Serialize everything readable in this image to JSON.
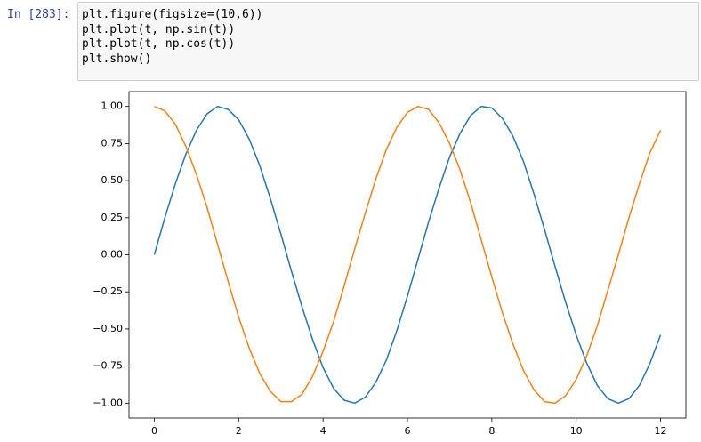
{
  "prompt": "In [283]:",
  "code": [
    "plt.figure(figsize=(10,6))",
    "plt.plot(t, np.sin(t))",
    "plt.plot(t, np.cos(t))",
    "plt.show()"
  ],
  "chart_data": {
    "type": "line",
    "x": [
      0,
      0.25,
      0.5,
      0.75,
      1,
      1.25,
      1.5,
      1.75,
      2,
      2.25,
      2.5,
      2.75,
      3,
      3.25,
      3.5,
      3.75,
      4,
      4.25,
      4.5,
      4.75,
      5,
      5.25,
      5.5,
      5.75,
      6,
      6.25,
      6.5,
      6.75,
      7,
      7.25,
      7.5,
      7.75,
      8,
      8.25,
      8.5,
      8.75,
      9,
      9.25,
      9.5,
      9.75,
      10,
      10.25,
      10.5,
      10.75,
      11,
      11.25,
      11.5,
      11.75,
      12
    ],
    "series": [
      {
        "color": "#1f77b4",
        "values": [
          0,
          0.25,
          0.48,
          0.68,
          0.84,
          0.95,
          1.0,
          0.98,
          0.91,
          0.78,
          0.6,
          0.38,
          0.14,
          -0.11,
          -0.35,
          -0.57,
          -0.76,
          -0.9,
          -0.98,
          -1.0,
          -0.96,
          -0.86,
          -0.71,
          -0.51,
          -0.28,
          -0.03,
          0.22,
          0.45,
          0.66,
          0.82,
          0.94,
          1.0,
          0.99,
          0.92,
          0.8,
          0.63,
          0.41,
          0.17,
          -0.08,
          -0.32,
          -0.54,
          -0.73,
          -0.88,
          -0.97,
          -1.0,
          -0.97,
          -0.88,
          -0.73,
          -0.54
        ]
      },
      {
        "color": "#ff7f0e",
        "values": [
          1,
          0.97,
          0.88,
          0.73,
          0.54,
          0.32,
          0.07,
          -0.18,
          -0.42,
          -0.63,
          -0.8,
          -0.92,
          -0.99,
          -0.99,
          -0.94,
          -0.82,
          -0.65,
          -0.45,
          -0.21,
          0.04,
          0.28,
          0.51,
          0.71,
          0.86,
          0.96,
          1.0,
          0.98,
          0.89,
          0.75,
          0.57,
          0.35,
          0.1,
          -0.15,
          -0.39,
          -0.6,
          -0.78,
          -0.91,
          -0.99,
          -1.0,
          -0.95,
          -0.84,
          -0.68,
          -0.48,
          -0.24,
          0.0,
          0.25,
          0.48,
          0.69,
          0.84
        ]
      }
    ],
    "xlim": [
      -0.6,
      12.6
    ],
    "ylim": [
      -1.1,
      1.1
    ],
    "xticks": [
      0,
      2,
      4,
      6,
      8,
      10,
      12
    ],
    "yticks": [
      {
        "value": -1,
        "label": "−1.00"
      },
      {
        "value": -0.75,
        "label": "−0.75"
      },
      {
        "value": -0.5,
        "label": "−0.50"
      },
      {
        "value": -0.25,
        "label": "−0.25"
      },
      {
        "value": 0,
        "label": "0.00"
      },
      {
        "value": 0.25,
        "label": "0.25"
      },
      {
        "value": 0.5,
        "label": "0.50"
      },
      {
        "value": 0.75,
        "label": "0.75"
      },
      {
        "value": 1,
        "label": "1.00"
      }
    ],
    "grid": false
  }
}
